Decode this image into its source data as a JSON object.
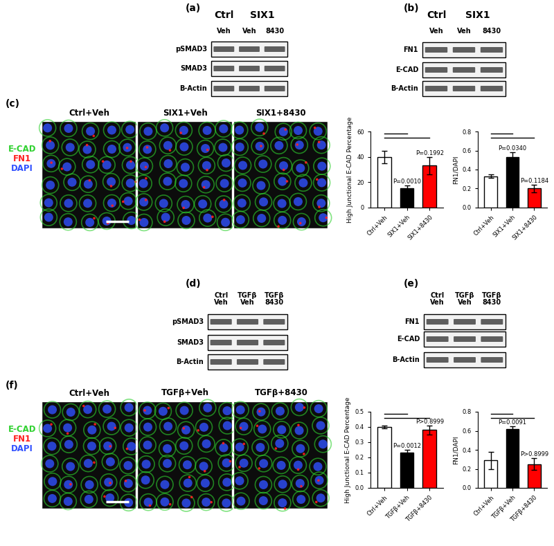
{
  "panel_labels": [
    "(a)",
    "(b)",
    "(c)",
    "(d)",
    "(e)",
    "(f)"
  ],
  "blots": [
    {
      "panel": "(a)",
      "lanes": [
        {
          "group": "Ctrl",
          "text": "Veh"
        },
        {
          "group": "SIX1",
          "text": "Veh"
        },
        {
          "group": "SIX1",
          "text": "8430"
        }
      ],
      "rows": [
        "pSMAD3",
        "SMAD3",
        "B-Actin"
      ]
    },
    {
      "panel": "(b)",
      "lanes": [
        {
          "group": "Ctrl",
          "text": "Veh"
        },
        {
          "group": "SIX1",
          "text": "Veh"
        },
        {
          "group": "SIX1",
          "text": "8430"
        }
      ],
      "rows": [
        "FN1",
        "E-CAD",
        "B-Actin"
      ]
    },
    {
      "panel": "(d)",
      "lanes": [
        {
          "text": "Ctrl\nVeh"
        },
        {
          "text": "TGFβ\nVeh"
        },
        {
          "text": "TGFβ\n8430"
        }
      ],
      "rows": [
        "pSMAD3",
        "SMAD3",
        "B-Actin"
      ]
    },
    {
      "panel": "(e)",
      "lanes": [
        {
          "text": "Ctrl\nVeh"
        },
        {
          "text": "TGFβ\nVeh"
        },
        {
          "text": "TGFβ\n8430"
        }
      ],
      "rows": [
        "FN1",
        "E-CAD",
        "B-Actin"
      ]
    }
  ],
  "images": [
    {
      "panel": "(c)",
      "titles": [
        "Ctrl+Veh",
        "SIX1+Veh",
        "SIX1+8430"
      ],
      "stains": [
        {
          "text": "E-CAD",
          "color": "#2fd12f"
        },
        {
          "text": "FN1",
          "color": "#ff2020"
        },
        {
          "text": "DAPI",
          "color": "#3050ff"
        }
      ]
    },
    {
      "panel": "(f)",
      "titles": [
        "Ctrl+Veh",
        "TGFβ+Veh",
        "TGFβ+8430"
      ],
      "stains": [
        {
          "text": "E-CAD",
          "color": "#2fd12f"
        },
        {
          "text": "FN1",
          "color": "#ff2020"
        },
        {
          "text": "DAPI",
          "color": "#3050ff"
        }
      ]
    }
  ],
  "chart_data": [
    {
      "type": "bar",
      "ylabel": "High Junctional E-CAD Percentage",
      "categories": [
        "Ctrl+Veh",
        "SIX1+Veh",
        "SIX1+8430"
      ],
      "values": [
        40,
        15,
        33
      ],
      "errors": [
        5,
        2.5,
        7
      ],
      "colors": [
        "#ffffff",
        "#000000",
        "#ff0000"
      ],
      "ylim": [
        0,
        60
      ],
      "yticks": [
        0,
        20,
        40,
        60
      ],
      "annotations": [
        {
          "category": "SIX1+Veh",
          "text": "P=0.0010"
        },
        {
          "category": "SIX1+8430",
          "text": "P=0.1992"
        }
      ],
      "comparisons": [
        [
          "Ctrl+Veh",
          "SIX1+Veh"
        ],
        [
          "Ctrl+Veh",
          "SIX1+8430"
        ]
      ]
    },
    {
      "type": "bar",
      "ylabel": "FN1/DAPI",
      "categories": [
        "Ctrl+Veh",
        "SIX1+Veh",
        "SIX1+8430"
      ],
      "values": [
        0.33,
        0.53,
        0.2
      ],
      "errors": [
        0.02,
        0.05,
        0.04
      ],
      "colors": [
        "#ffffff",
        "#000000",
        "#ff0000"
      ],
      "ylim": [
        0,
        0.8
      ],
      "yticks": [
        0.0,
        0.2,
        0.4,
        0.6,
        0.8
      ],
      "annotations": [
        {
          "category": "SIX1+Veh",
          "text": "P=0.0340"
        },
        {
          "category": "SIX1+8430",
          "text": "P=0.1184"
        }
      ],
      "comparisons": [
        [
          "Ctrl+Veh",
          "SIX1+Veh"
        ],
        [
          "Ctrl+Veh",
          "SIX1+8430"
        ]
      ]
    },
    {
      "type": "bar",
      "ylabel": "High Junctional E-CAD Percentage",
      "categories": [
        "Ctrl+Veh",
        "TGFβ+Veh",
        "TGFβ+8430"
      ],
      "values": [
        0.4,
        0.23,
        0.38
      ],
      "errors": [
        0.01,
        0.02,
        0.03
      ],
      "colors": [
        "#ffffff",
        "#000000",
        "#ff0000"
      ],
      "ylim": [
        0,
        0.5
      ],
      "yticks": [
        0.0,
        0.1,
        0.2,
        0.3,
        0.4,
        0.5
      ],
      "annotations": [
        {
          "category": "TGFβ+Veh",
          "text": "P=0.0012"
        },
        {
          "category": "TGFβ+8430",
          "text": "P>0.8999"
        }
      ],
      "comparisons": [
        [
          "Ctrl+Veh",
          "TGFβ+Veh"
        ],
        [
          "Ctrl+Veh",
          "TGFβ+8430"
        ]
      ]
    },
    {
      "type": "bar",
      "ylabel": "FN1/DAPI",
      "categories": [
        "Ctrl+Veh",
        "TGFβ+Veh",
        "TGFβ+8430"
      ],
      "values": [
        0.29,
        0.62,
        0.25
      ],
      "errors": [
        0.09,
        0.03,
        0.06
      ],
      "colors": [
        "#ffffff",
        "#000000",
        "#ff0000"
      ],
      "ylim": [
        0,
        0.8
      ],
      "yticks": [
        0.0,
        0.2,
        0.4,
        0.6,
        0.8
      ],
      "annotations": [
        {
          "category": "TGFβ+Veh",
          "text": "P=0.0091"
        },
        {
          "category": "TGFβ+8430",
          "text": "P>0.8999"
        }
      ],
      "comparisons": [
        [
          "Ctrl+Veh",
          "TGFβ+Veh"
        ],
        [
          "Ctrl+Veh",
          "TGFβ+8430"
        ]
      ]
    }
  ]
}
